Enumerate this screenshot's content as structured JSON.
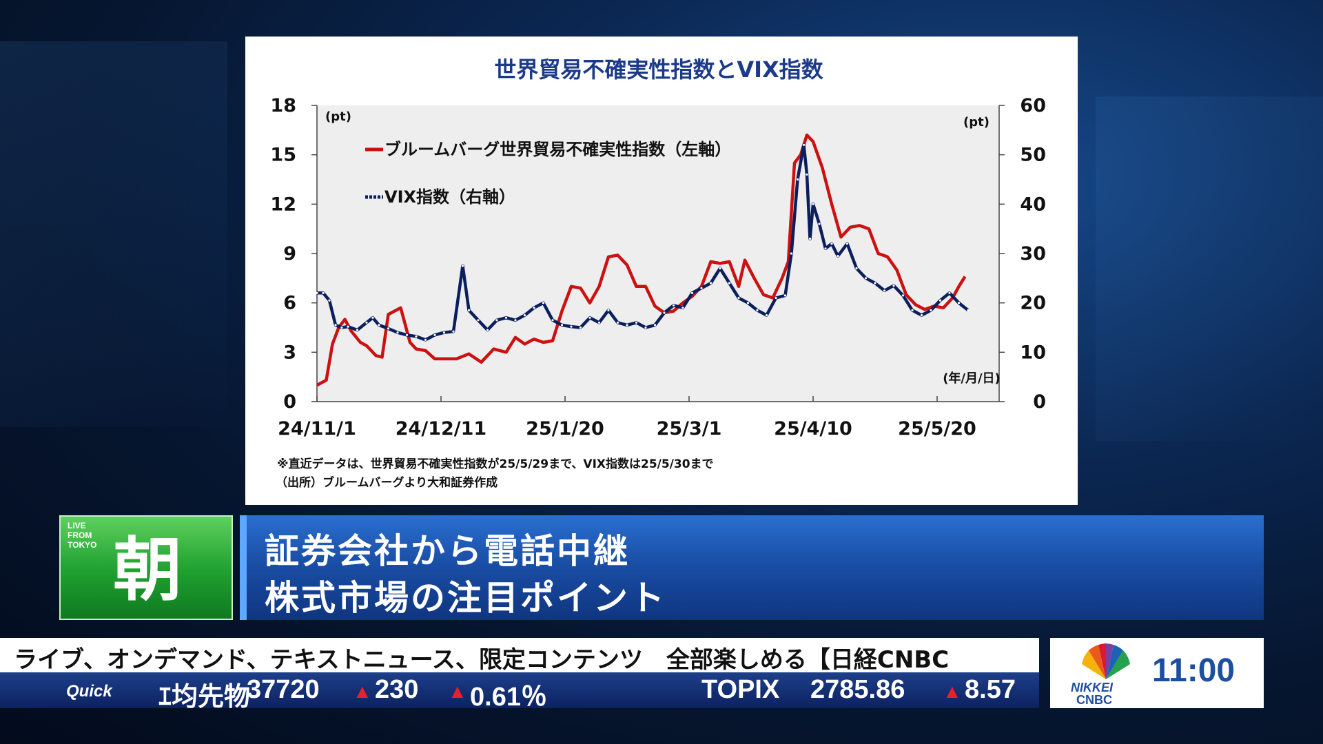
{
  "chart_data": {
    "type": "line",
    "title": "世界貿易不確実性指数とVIX指数",
    "left_unit": "(pt)",
    "right_unit": "(pt)",
    "x_unit_label": "(年/月/日)",
    "x_ticks": [
      "24/11/1",
      "24/12/11",
      "25/1/20",
      "25/3/1",
      "25/4/10",
      "25/5/20"
    ],
    "left_axis": {
      "range": [
        0,
        18
      ],
      "ticks": [
        "0",
        "3",
        "6",
        "9",
        "12",
        "15",
        "18"
      ]
    },
    "right_axis": {
      "range": [
        0,
        60
      ],
      "ticks": [
        "0",
        "10",
        "20",
        "30",
        "40",
        "50",
        "60"
      ]
    },
    "series": [
      {
        "name": "ブルームバーグ世界貿易不確実性指数（左軸）",
        "axis": "left",
        "color": "#cc1111",
        "points": [
          [
            "24/11/1",
            1.0
          ],
          [
            "24/11/4",
            1.3
          ],
          [
            "24/11/6",
            3.5
          ],
          [
            "24/11/8",
            4.5
          ],
          [
            "24/11/10",
            5.0
          ],
          [
            "24/11/12",
            4.3
          ],
          [
            "24/11/15",
            3.6
          ],
          [
            "24/11/17",
            3.4
          ],
          [
            "24/11/20",
            2.8
          ],
          [
            "24/11/22",
            2.7
          ],
          [
            "24/11/24",
            5.3
          ],
          [
            "24/11/26",
            5.5
          ],
          [
            "24/11/28",
            5.7
          ],
          [
            "24/12/1",
            3.6
          ],
          [
            "24/12/3",
            3.2
          ],
          [
            "24/12/6",
            3.1
          ],
          [
            "24/12/9",
            2.6
          ],
          [
            "24/12/12",
            2.6
          ],
          [
            "24/12/16",
            2.6
          ],
          [
            "24/12/20",
            2.9
          ],
          [
            "24/12/24",
            2.4
          ],
          [
            "24/12/28",
            3.2
          ],
          [
            "25/1/1",
            3.0
          ],
          [
            "25/1/4",
            3.9
          ],
          [
            "25/1/7",
            3.5
          ],
          [
            "25/1/10",
            3.8
          ],
          [
            "25/1/13",
            3.6
          ],
          [
            "25/1/16",
            3.7
          ],
          [
            "25/1/19",
            5.5
          ],
          [
            "25/1/22",
            7.0
          ],
          [
            "25/1/25",
            6.9
          ],
          [
            "25/1/28",
            6.0
          ],
          [
            "25/1/31",
            7.0
          ],
          [
            "25/2/3",
            8.8
          ],
          [
            "25/2/6",
            8.9
          ],
          [
            "25/2/9",
            8.3
          ],
          [
            "25/2/12",
            7.0
          ],
          [
            "25/2/15",
            7.0
          ],
          [
            "25/2/18",
            5.8
          ],
          [
            "25/2/21",
            5.4
          ],
          [
            "25/2/24",
            5.5
          ],
          [
            "25/2/27",
            6.0
          ],
          [
            "25/3/2",
            6.4
          ],
          [
            "25/3/5",
            7.0
          ],
          [
            "25/3/8",
            8.5
          ],
          [
            "25/3/11",
            8.4
          ],
          [
            "25/3/14",
            8.5
          ],
          [
            "25/3/17",
            7.0
          ],
          [
            "25/3/19",
            8.6
          ],
          [
            "25/3/22",
            7.5
          ],
          [
            "25/3/25",
            6.5
          ],
          [
            "25/3/28",
            6.3
          ],
          [
            "25/3/31",
            7.5
          ],
          [
            "25/4/2",
            8.5
          ],
          [
            "25/4/4",
            14.5
          ],
          [
            "25/4/6",
            15.0
          ],
          [
            "25/4/8",
            16.2
          ],
          [
            "25/4/10",
            15.8
          ],
          [
            "25/4/13",
            14.2
          ],
          [
            "25/4/16",
            12.0
          ],
          [
            "25/4/19",
            10.0
          ],
          [
            "25/4/22",
            10.6
          ],
          [
            "25/4/25",
            10.7
          ],
          [
            "25/4/28",
            10.5
          ],
          [
            "25/5/1",
            9.0
          ],
          [
            "25/5/4",
            8.8
          ],
          [
            "25/5/7",
            8.0
          ],
          [
            "25/5/10",
            6.5
          ],
          [
            "25/5/13",
            5.9
          ],
          [
            "25/5/16",
            5.6
          ],
          [
            "25/5/19",
            5.8
          ],
          [
            "25/5/22",
            5.7
          ],
          [
            "25/5/25",
            6.3
          ],
          [
            "25/5/27",
            7.0
          ],
          [
            "25/5/29",
            7.6
          ]
        ]
      },
      {
        "name": "VIX指数（右軸）",
        "axis": "right",
        "color": "#0b1f5c",
        "points": [
          [
            "24/11/1",
            22.0
          ],
          [
            "24/11/3",
            22.0
          ],
          [
            "24/11/5",
            20.5
          ],
          [
            "24/11/7",
            15.5
          ],
          [
            "24/11/9",
            15.0
          ],
          [
            "24/11/11",
            15.2
          ],
          [
            "24/11/14",
            14.5
          ],
          [
            "24/11/17",
            16.0
          ],
          [
            "24/11/19",
            17.0
          ],
          [
            "24/11/21",
            15.5
          ],
          [
            "24/11/24",
            14.8
          ],
          [
            "24/11/27",
            14.0
          ],
          [
            "24/11/30",
            13.5
          ],
          [
            "24/12/3",
            13.2
          ],
          [
            "24/12/6",
            12.5
          ],
          [
            "24/12/9",
            13.5
          ],
          [
            "24/12/12",
            14.0
          ],
          [
            "24/12/15",
            14.2
          ],
          [
            "24/12/18",
            27.5
          ],
          [
            "24/12/20",
            18.5
          ],
          [
            "24/12/23",
            16.5
          ],
          [
            "24/12/26",
            14.5
          ],
          [
            "24/12/29",
            16.5
          ],
          [
            "25/1/1",
            17.0
          ],
          [
            "25/1/4",
            16.5
          ],
          [
            "25/1/7",
            17.5
          ],
          [
            "25/1/10",
            19.0
          ],
          [
            "25/1/13",
            20.0
          ],
          [
            "25/1/16",
            16.5
          ],
          [
            "25/1/19",
            15.5
          ],
          [
            "25/1/22",
            15.2
          ],
          [
            "25/1/25",
            15.0
          ],
          [
            "25/1/28",
            17.0
          ],
          [
            "25/1/31",
            16.0
          ],
          [
            "25/2/3",
            18.5
          ],
          [
            "25/2/6",
            16.0
          ],
          [
            "25/2/9",
            15.5
          ],
          [
            "25/2/12",
            16.0
          ],
          [
            "25/2/15",
            15.0
          ],
          [
            "25/2/18",
            15.5
          ],
          [
            "25/2/21",
            18.0
          ],
          [
            "25/2/24",
            19.5
          ],
          [
            "25/2/27",
            19.0
          ],
          [
            "25/3/2",
            22.0
          ],
          [
            "25/3/5",
            23.0
          ],
          [
            "25/3/8",
            24.0
          ],
          [
            "25/3/11",
            27.0
          ],
          [
            "25/3/14",
            24.0
          ],
          [
            "25/3/17",
            21.0
          ],
          [
            "25/3/20",
            20.0
          ],
          [
            "25/3/23",
            18.5
          ],
          [
            "25/3/26",
            17.5
          ],
          [
            "25/3/29",
            21.0
          ],
          [
            "25/4/1",
            21.5
          ],
          [
            "25/4/3",
            30.0
          ],
          [
            "25/4/5",
            45.0
          ],
          [
            "25/4/7",
            52.0
          ],
          [
            "25/4/8",
            46.0
          ],
          [
            "25/4/9",
            33.0
          ],
          [
            "25/4/10",
            40.0
          ],
          [
            "25/4/12",
            36.0
          ],
          [
            "25/4/14",
            31.0
          ],
          [
            "25/4/16",
            32.0
          ],
          [
            "25/4/18",
            29.5
          ],
          [
            "25/4/21",
            32.0
          ],
          [
            "25/4/24",
            27.0
          ],
          [
            "25/4/27",
            25.0
          ],
          [
            "25/4/30",
            24.0
          ],
          [
            "25/5/3",
            22.5
          ],
          [
            "25/5/6",
            23.5
          ],
          [
            "25/5/9",
            21.5
          ],
          [
            "25/5/12",
            18.5
          ],
          [
            "25/5/15",
            17.5
          ],
          [
            "25/5/18",
            18.5
          ],
          [
            "25/5/21",
            20.5
          ],
          [
            "25/5/24",
            22.0
          ],
          [
            "25/5/27",
            20.0
          ],
          [
            "25/5/30",
            18.5
          ]
        ]
      }
    ],
    "footnotes": [
      "※直近データは、世界貿易不確実性指数が25/5/29まで、VIX指数は25/5/30まで",
      "（出所）ブルームバーグより大和証券作成"
    ]
  },
  "program": {
    "live_badge": "LIVE\nFROM\nTOKYO",
    "title_char": "朝",
    "headline_1": "証券会社から電話中継",
    "headline_2": "株式市場の注目ポイント"
  },
  "ticker": {
    "scroll_text": "ライブ、オンデマンド、テキストニュース、限定コンテンツ　全部楽しめる【日経CNBC",
    "brand": "Quick",
    "item1_name": "ｴ均先物",
    "item1_value": "37720",
    "item1_change": "230",
    "item1_pct": "0.61％",
    "item2_name": "TOPIX",
    "item2_value": "2785.86",
    "item2_change": "8.57",
    "up_marker": "▲"
  },
  "station": {
    "logo_line1": "NIKKEI",
    "logo_line2": "CNBC",
    "clock": "11:00"
  }
}
